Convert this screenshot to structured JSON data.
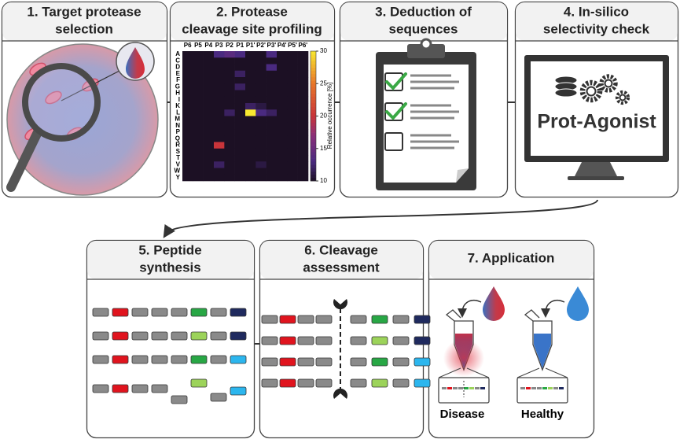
{
  "panels": [
    {
      "title": [
        "1. Target protease",
        "selection"
      ]
    },
    {
      "title": [
        "2. Protease",
        "cleavage site profiling"
      ]
    },
    {
      "title": [
        "3. Deduction of",
        "sequences"
      ]
    },
    {
      "title": [
        "4. In-silico",
        "selectivity check"
      ]
    },
    {
      "title": [
        "5. Peptide",
        "synthesis"
      ]
    },
    {
      "title": [
        "6. Cleavage",
        "assessment"
      ]
    },
    {
      "title": [
        "7. Application"
      ]
    }
  ],
  "heatmap": {
    "columns": [
      "P6",
      "P5",
      "P4",
      "P3",
      "P2",
      "P1",
      "P1'",
      "P2'",
      "P3'",
      "P4'",
      "P5'",
      "P6'"
    ],
    "rows": [
      "A",
      "C",
      "D",
      "E",
      "F",
      "G",
      "H",
      "I",
      "K",
      "L",
      "M",
      "N",
      "P",
      "Q",
      "R",
      "S",
      "T",
      "V",
      "W",
      "Y"
    ],
    "values": [
      [
        10,
        10,
        10,
        13,
        14,
        13,
        10,
        10,
        13,
        10,
        10,
        10
      ],
      [
        10,
        10,
        10,
        10,
        10,
        10,
        10,
        10,
        10,
        10,
        10,
        10
      ],
      [
        10,
        10,
        10,
        10,
        10,
        10,
        10,
        10,
        13,
        10,
        10,
        10
      ],
      [
        10,
        10,
        10,
        10,
        10,
        12,
        10,
        10,
        10,
        10,
        10,
        10
      ],
      [
        10,
        10,
        10,
        10,
        10,
        10,
        10,
        10,
        10,
        10,
        10,
        10
      ],
      [
        10,
        10,
        10,
        10,
        10,
        12,
        10,
        10,
        10,
        10,
        10,
        10
      ],
      [
        10,
        10,
        10,
        10,
        10,
        10,
        10,
        10,
        10,
        10,
        10,
        10
      ],
      [
        10,
        10,
        10,
        10,
        10,
        10,
        10,
        10,
        10,
        10,
        10,
        10
      ],
      [
        10,
        10,
        10,
        10,
        10,
        10,
        12,
        11,
        10,
        10,
        10,
        10
      ],
      [
        10,
        10,
        10,
        10,
        12,
        10,
        30,
        13,
        12,
        10,
        10,
        10
      ],
      [
        10,
        10,
        10,
        10,
        10,
        10,
        10,
        10,
        10,
        10,
        10,
        10
      ],
      [
        10,
        10,
        10,
        10,
        10,
        10,
        10,
        10,
        10,
        10,
        10,
        10
      ],
      [
        10,
        10,
        10,
        10,
        10,
        10,
        10,
        10,
        10,
        10,
        10,
        10
      ],
      [
        10,
        10,
        10,
        10,
        10,
        10,
        10,
        10,
        10,
        10,
        10,
        10
      ],
      [
        10,
        10,
        10,
        20,
        10,
        10,
        10,
        10,
        10,
        10,
        10,
        10
      ],
      [
        10,
        10,
        10,
        10,
        10,
        10,
        10,
        10,
        10,
        10,
        10,
        10
      ],
      [
        10,
        10,
        10,
        10,
        10,
        10,
        10,
        10,
        10,
        10,
        10,
        10
      ],
      [
        10,
        10,
        10,
        12,
        10,
        10,
        10,
        11,
        10,
        10,
        10,
        10
      ],
      [
        10,
        10,
        10,
        10,
        10,
        10,
        10,
        10,
        10,
        10,
        10,
        10
      ],
      [
        10,
        10,
        10,
        10,
        10,
        10,
        10,
        10,
        10,
        10,
        10,
        10
      ]
    ],
    "colorbar": {
      "label": "Relative occurrence [%]",
      "lim": [
        10,
        30
      ],
      "ticks": [
        10,
        15,
        20,
        25,
        30
      ]
    }
  },
  "software": {
    "name": "Prot-Agonist"
  },
  "application": {
    "samples": [
      "Disease",
      "Healthy"
    ]
  }
}
